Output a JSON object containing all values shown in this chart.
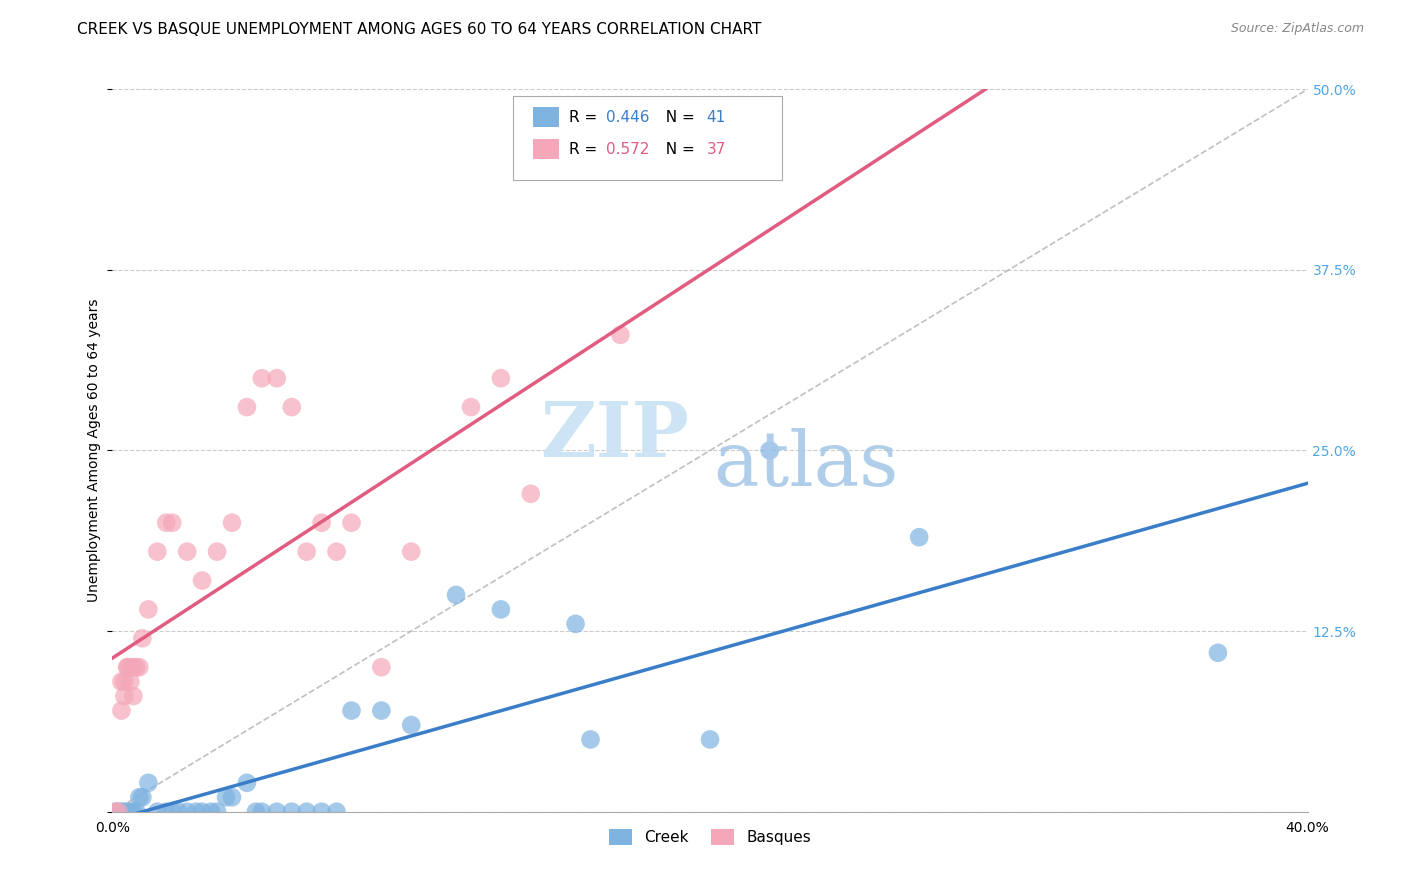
{
  "title": "CREEK VS BASQUE UNEMPLOYMENT AMONG AGES 60 TO 64 YEARS CORRELATION CHART",
  "source": "Source: ZipAtlas.com",
  "ylabel": "Unemployment Among Ages 60 to 64 years",
  "xlim": [
    0.0,
    0.4
  ],
  "ylim": [
    0.0,
    0.5
  ],
  "xticks": [
    0.0,
    0.1,
    0.2,
    0.3,
    0.4
  ],
  "yticks": [
    0.0,
    0.125,
    0.25,
    0.375,
    0.5
  ],
  "xticklabels": [
    "0.0%",
    "",
    "",
    "",
    "40.0%"
  ],
  "yticklabels": [
    "",
    "12.5%",
    "25.0%",
    "37.5%",
    "50.0%"
  ],
  "creek_color": "#7EB3E0",
  "basque_color": "#F4A7B9",
  "creek_line_color": "#3A7DC9",
  "basque_line_color": "#E05C80",
  "creek_R": 0.446,
  "creek_N": 41,
  "basque_R": 0.572,
  "basque_N": 37,
  "creek_points": [
    [
      0.001,
      0.0
    ],
    [
      0.002,
      0.0
    ],
    [
      0.003,
      0.0
    ],
    [
      0.004,
      0.0
    ],
    [
      0.005,
      0.0
    ],
    [
      0.006,
      0.0
    ],
    [
      0.007,
      0.0
    ],
    [
      0.008,
      0.0
    ],
    [
      0.009,
      0.01
    ],
    [
      0.01,
      0.01
    ],
    [
      0.012,
      0.02
    ],
    [
      0.015,
      0.0
    ],
    [
      0.018,
      0.0
    ],
    [
      0.02,
      0.0
    ],
    [
      0.022,
      0.0
    ],
    [
      0.025,
      0.0
    ],
    [
      0.028,
      0.0
    ],
    [
      0.03,
      0.0
    ],
    [
      0.033,
      0.0
    ],
    [
      0.035,
      0.0
    ],
    [
      0.038,
      0.01
    ],
    [
      0.04,
      0.01
    ],
    [
      0.045,
      0.02
    ],
    [
      0.048,
      0.0
    ],
    [
      0.05,
      0.0
    ],
    [
      0.055,
      0.0
    ],
    [
      0.06,
      0.0
    ],
    [
      0.065,
      0.0
    ],
    [
      0.07,
      0.0
    ],
    [
      0.075,
      0.0
    ],
    [
      0.08,
      0.07
    ],
    [
      0.09,
      0.07
    ],
    [
      0.1,
      0.06
    ],
    [
      0.115,
      0.15
    ],
    [
      0.13,
      0.14
    ],
    [
      0.155,
      0.13
    ],
    [
      0.16,
      0.05
    ],
    [
      0.2,
      0.05
    ],
    [
      0.22,
      0.25
    ],
    [
      0.27,
      0.19
    ],
    [
      0.37,
      0.11
    ]
  ],
  "basque_points": [
    [
      0.001,
      0.0
    ],
    [
      0.002,
      0.0
    ],
    [
      0.003,
      0.07
    ],
    [
      0.003,
      0.09
    ],
    [
      0.004,
      0.08
    ],
    [
      0.004,
      0.09
    ],
    [
      0.005,
      0.1
    ],
    [
      0.005,
      0.1
    ],
    [
      0.006,
      0.1
    ],
    [
      0.006,
      0.09
    ],
    [
      0.007,
      0.1
    ],
    [
      0.007,
      0.08
    ],
    [
      0.008,
      0.1
    ],
    [
      0.009,
      0.1
    ],
    [
      0.01,
      0.12
    ],
    [
      0.012,
      0.14
    ],
    [
      0.015,
      0.18
    ],
    [
      0.018,
      0.2
    ],
    [
      0.02,
      0.2
    ],
    [
      0.025,
      0.18
    ],
    [
      0.03,
      0.16
    ],
    [
      0.035,
      0.18
    ],
    [
      0.04,
      0.2
    ],
    [
      0.045,
      0.28
    ],
    [
      0.05,
      0.3
    ],
    [
      0.055,
      0.3
    ],
    [
      0.06,
      0.28
    ],
    [
      0.065,
      0.18
    ],
    [
      0.07,
      0.2
    ],
    [
      0.075,
      0.18
    ],
    [
      0.08,
      0.2
    ],
    [
      0.09,
      0.1
    ],
    [
      0.1,
      0.18
    ],
    [
      0.12,
      0.28
    ],
    [
      0.13,
      0.3
    ],
    [
      0.14,
      0.22
    ],
    [
      0.17,
      0.33
    ]
  ],
  "watermark_zip": "ZIP",
  "watermark_atlas": "atlas",
  "background_color": "#ffffff",
  "grid_color": "#cccccc",
  "title_fontsize": 11,
  "axis_label_fontsize": 10,
  "tick_fontsize": 10
}
